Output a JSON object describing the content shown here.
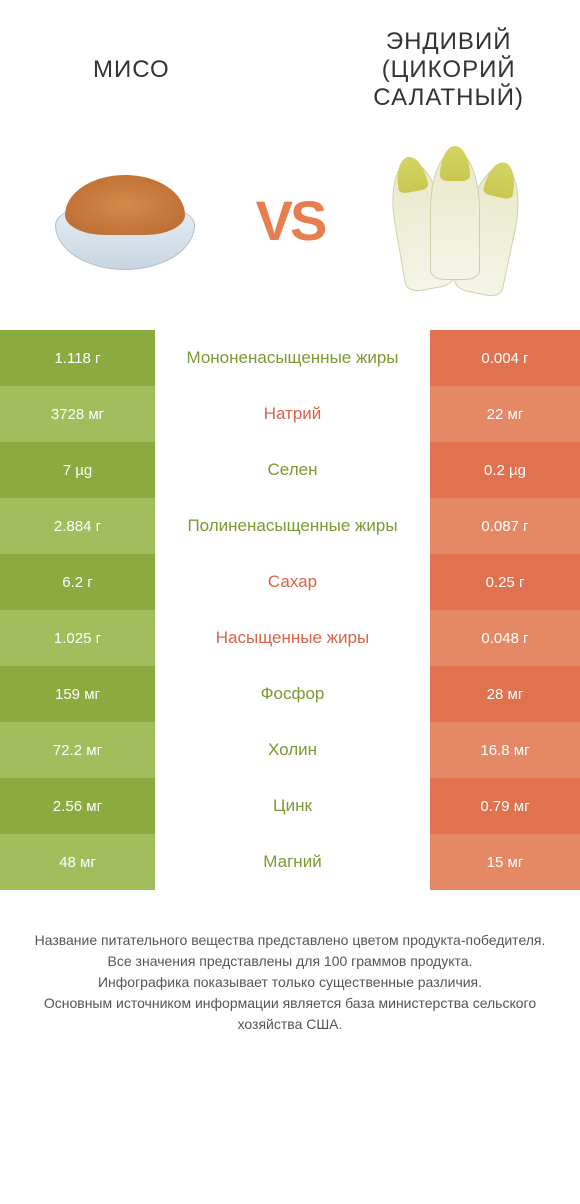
{
  "header": {
    "left_title": "МИСО",
    "right_title": "ЭНДИВИЙ (ЦИКОРИЙ САЛАТНЫЙ)",
    "vs_label": "VS"
  },
  "colors": {
    "green_dark": "#8aab3f",
    "green_light": "#a1bd5c",
    "orange_dark": "#e0724f",
    "orange_light": "#e58866",
    "text_orange": "#d9634a",
    "text_green": "#7a9b33"
  },
  "rows": [
    {
      "left": "1.118 г",
      "label": "Мононенасыщенные жиры",
      "right": "0.004 г",
      "winner": "left"
    },
    {
      "left": "3728 мг",
      "label": "Натрий",
      "right": "22 мг",
      "winner": "right"
    },
    {
      "left": "7 µg",
      "label": "Селен",
      "right": "0.2 µg",
      "winner": "left"
    },
    {
      "left": "2.884 г",
      "label": "Полиненасыщенные жиры",
      "right": "0.087 г",
      "winner": "left"
    },
    {
      "left": "6.2 г",
      "label": "Сахар",
      "right": "0.25 г",
      "winner": "right"
    },
    {
      "left": "1.025 г",
      "label": "Насыщенные жиры",
      "right": "0.048 г",
      "winner": "right"
    },
    {
      "left": "159 мг",
      "label": "Фосфор",
      "right": "28 мг",
      "winner": "left"
    },
    {
      "left": "72.2 мг",
      "label": "Холин",
      "right": "16.8 мг",
      "winner": "left"
    },
    {
      "left": "2.56 мг",
      "label": "Цинк",
      "right": "0.79 мг",
      "winner": "left"
    },
    {
      "left": "48 мг",
      "label": "Магний",
      "right": "15 мг",
      "winner": "left"
    }
  ],
  "footer": {
    "line1": "Название питательного вещества представлено цветом продукта-победителя.",
    "line2": "Все значения представлены для 100 граммов продукта.",
    "line3": "Инфографика показывает только существенные различия.",
    "line4": "Основным источником информации является база министерства сельского хозяйства США."
  }
}
